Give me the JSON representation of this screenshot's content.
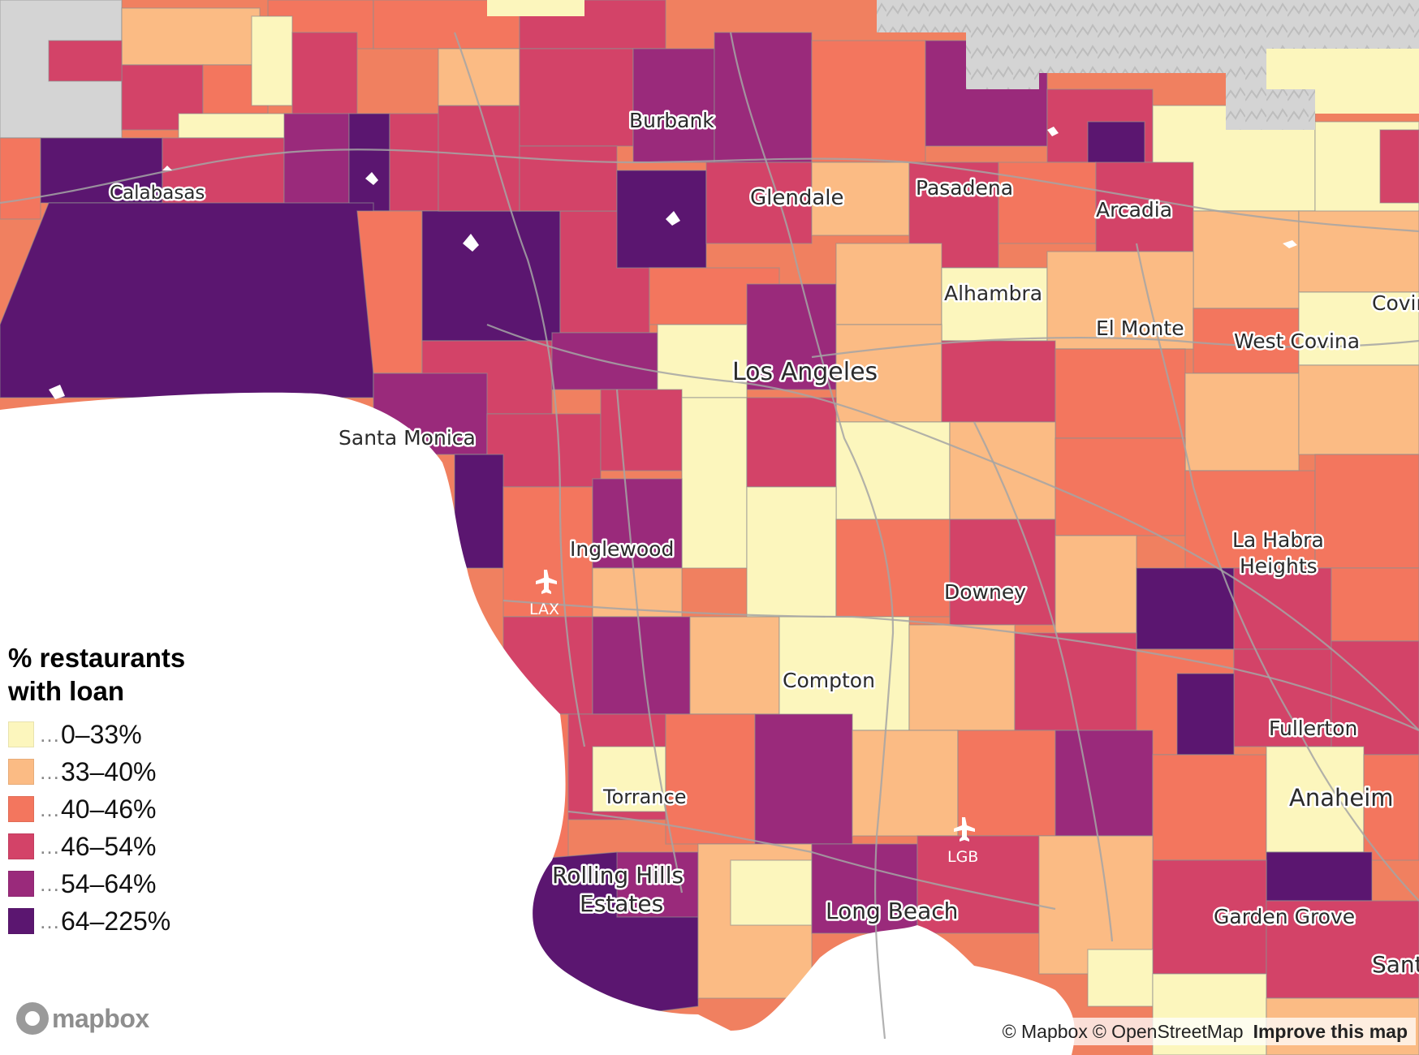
{
  "legend": {
    "title_line1": "% restaurants",
    "title_line2": "with loan",
    "separator": "…",
    "classes": [
      {
        "label": "0–33%",
        "color": "#fcf6bd"
      },
      {
        "label": "33–40%",
        "color": "#fbbb84"
      },
      {
        "label": "40–46%",
        "color": "#f3765e"
      },
      {
        "label": "46–54%",
        "color": "#d34368"
      },
      {
        "label": "54–64%",
        "color": "#9a2a7b"
      },
      {
        "label": "64–225%",
        "color": "#5b1670"
      }
    ]
  },
  "places": {
    "burbank": "Burbank",
    "calabasas": "Calabasas",
    "glendale": "Glendale",
    "pasadena": "Pasadena",
    "arcadia": "Arcadia",
    "alhambra": "Alhambra",
    "el_monte": "El Monte",
    "covina": "Covina",
    "west_covina": "West Covina",
    "los_angeles": "Los Angeles",
    "santa_monica": "Santa Monica",
    "inglewood": "Inglewood",
    "la_habra_line1": "La Habra",
    "la_habra_line2": "Heights",
    "downey": "Downey",
    "compton": "Compton",
    "fullerton": "Fullerton",
    "torrance": "Torrance",
    "anaheim": "Anaheim",
    "rolling_line1": "Rolling Hills",
    "rolling_line2": "Estates",
    "long_beach": "Long Beach",
    "garden_grove": "Garden Grove",
    "santa": "Santa"
  },
  "airports": {
    "lax": "LAX",
    "lgb": "LGB"
  },
  "mapbox_logo": "mapbox",
  "attribution": {
    "mapbox": "© Mapbox",
    "osm": "© OpenStreetMap",
    "improve": "Improve this map"
  }
}
